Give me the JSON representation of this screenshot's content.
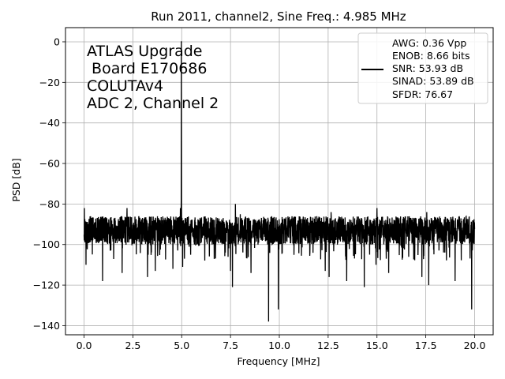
{
  "chart_data": {
    "type": "line",
    "title": "Run 2011, channel2, Sine Freq.: 4.985 MHz",
    "xlabel": "Frequency [MHz]",
    "ylabel": "PSD [dB]",
    "xlim": [
      -0.95,
      20.95
    ],
    "ylim": [
      -144.5,
      7
    ],
    "xticks": [
      0.0,
      2.5,
      5.0,
      7.5,
      10.0,
      12.5,
      15.0,
      17.5,
      20.0
    ],
    "xtick_labels": [
      "0.0",
      "2.5",
      "5.0",
      "7.5",
      "10.0",
      "12.5",
      "15.0",
      "17.5",
      "20.0"
    ],
    "yticks": [
      0,
      -20,
      -40,
      -60,
      -80,
      -100,
      -120,
      -140
    ],
    "ytick_labels": [
      "0",
      "−20",
      "−40",
      "−60",
      "−80",
      "−100",
      "−120",
      "−140"
    ],
    "grid": true,
    "line_color": "#000000",
    "annotation_lines": [
      "ATLAS Upgrade",
      " Board E170686",
      "COLUTAv4",
      "ADC 2, Channel 2"
    ],
    "legend": {
      "placement": "top-right",
      "entries": [
        "AWG: 0.36 Vpp",
        "ENOB: 8.66 bits",
        "SNR: 53.93 dB",
        "SINAD: 53.89 dB",
        "SFDR: 76.67"
      ]
    },
    "signal_peak": {
      "x": 4.985,
      "y": 0
    },
    "noise_floor": {
      "mean": -93,
      "band": [
        -100,
        -86
      ]
    },
    "spurs": [
      {
        "x": 0.02,
        "y": -82
      },
      {
        "x": 2.2,
        "y": -82
      },
      {
        "x": 4.93,
        "y": -82
      },
      {
        "x": 5.05,
        "y": -81
      },
      {
        "x": 7.75,
        "y": -80
      },
      {
        "x": 8.0,
        "y": -85
      },
      {
        "x": 9.95,
        "y": -82
      },
      {
        "x": 12.65,
        "y": -84
      },
      {
        "x": 15.0,
        "y": -82
      },
      {
        "x": 17.55,
        "y": -84
      }
    ],
    "dips": [
      {
        "x": 0.1,
        "y": -110
      },
      {
        "x": 0.95,
        "y": -118
      },
      {
        "x": 1.95,
        "y": -114
      },
      {
        "x": 3.25,
        "y": -116
      },
      {
        "x": 3.65,
        "y": -113
      },
      {
        "x": 4.55,
        "y": -112
      },
      {
        "x": 5.05,
        "y": -111
      },
      {
        "x": 7.5,
        "y": -113
      },
      {
        "x": 7.6,
        "y": -121
      },
      {
        "x": 8.55,
        "y": -114
      },
      {
        "x": 9.45,
        "y": -138
      },
      {
        "x": 9.95,
        "y": -132
      },
      {
        "x": 12.35,
        "y": -113
      },
      {
        "x": 12.55,
        "y": -116
      },
      {
        "x": 13.45,
        "y": -118
      },
      {
        "x": 14.35,
        "y": -121
      },
      {
        "x": 14.95,
        "y": -110
      },
      {
        "x": 15.6,
        "y": -114
      },
      {
        "x": 17.3,
        "y": -116
      },
      {
        "x": 17.65,
        "y": -120
      },
      {
        "x": 19.0,
        "y": -118
      },
      {
        "x": 19.85,
        "y": -132
      }
    ]
  }
}
